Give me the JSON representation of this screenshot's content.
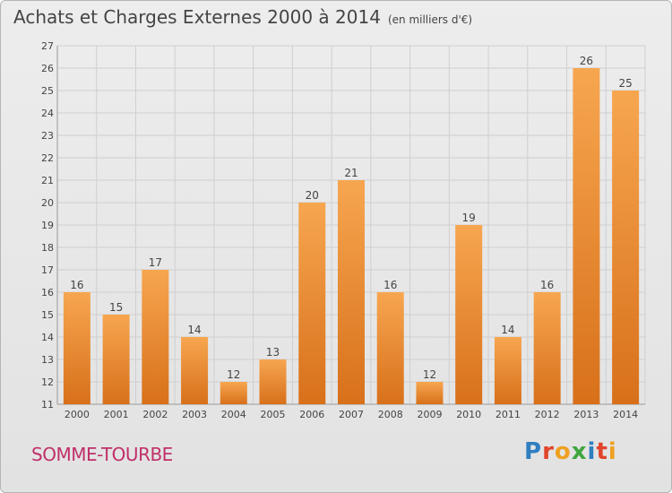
{
  "title": "Achats et Charges Externes 2000 à 2014",
  "unit": "(en milliers d'€)",
  "place": "SOMME-TOURBE",
  "logo": "Proxiti",
  "colors": {
    "bar_light": "#f7a650",
    "bar_dark": "#d8701a",
    "grid": "#cfcfcf",
    "axis_text": "#444444",
    "place_text": "#c0306a"
  },
  "chart_data": {
    "type": "bar",
    "title": "Achats et Charges Externes 2000 à 2014",
    "xlabel": "",
    "ylabel": "",
    "categories": [
      "2000",
      "2001",
      "2002",
      "2003",
      "2004",
      "2005",
      "2006",
      "2007",
      "2008",
      "2009",
      "2010",
      "2011",
      "2012",
      "2013",
      "2014"
    ],
    "values": [
      16,
      15,
      17,
      14,
      12,
      13,
      20,
      21,
      16,
      12,
      19,
      14,
      16,
      26,
      25
    ],
    "ylim": [
      11,
      27
    ],
    "yticks": [
      11,
      12,
      13,
      14,
      15,
      16,
      17,
      18,
      19,
      20,
      21,
      22,
      23,
      24,
      25,
      26,
      27
    ],
    "grid": true
  }
}
